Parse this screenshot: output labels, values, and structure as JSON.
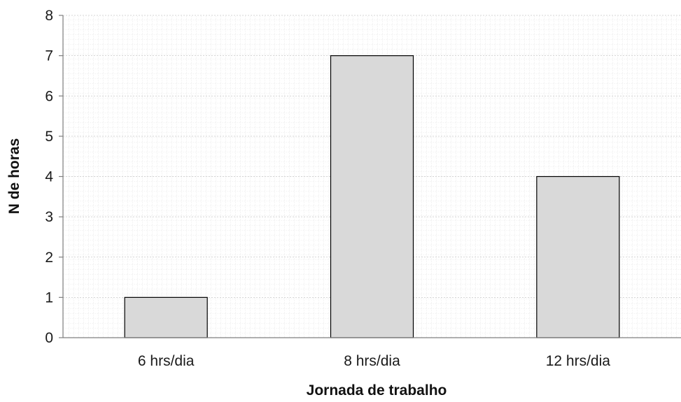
{
  "chart_data": {
    "type": "bar",
    "title": "",
    "xlabel": "Jornada de trabalho",
    "ylabel": "N de horas",
    "categories": [
      "6 hrs/dia",
      "8 hrs/dia",
      "12 hrs/dia"
    ],
    "values": [
      1,
      7,
      4
    ],
    "ylim": [
      0,
      8
    ],
    "yticks": [
      0,
      1,
      2,
      3,
      4,
      5,
      6,
      7,
      8
    ],
    "grid": true,
    "legend": "none",
    "bar_color": "#d9d9d9",
    "bar_edge_color": "#000000",
    "grid_color": "#c8c8c8"
  }
}
